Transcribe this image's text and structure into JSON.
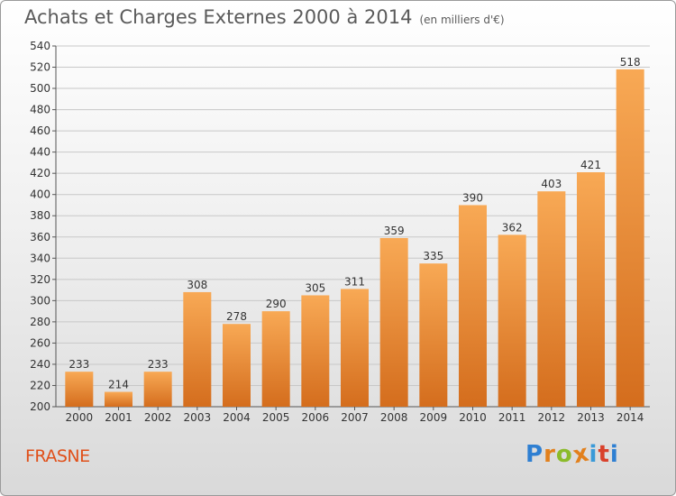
{
  "header": {
    "title": "Achats et Charges Externes 2000 à 2014",
    "unit": "(en milliers d'€)"
  },
  "footer": {
    "place": "FRASNE",
    "logo_text": "Proxiti",
    "logo_colors": [
      "#2e7fd2",
      "#e2801c",
      "#8bbb2a",
      "#e2801c",
      "#3a9ad8",
      "#d9412b",
      "#2e7fd2"
    ]
  },
  "colors": {
    "bar_light": "#f8a955",
    "bar_dark": "#d46d1d",
    "grid": "#c8c8c8",
    "axis_text": "#333333",
    "place": "#e0501a"
  },
  "chart_data": {
    "type": "bar",
    "title": "Achats et Charges Externes 2000 à 2014",
    "subtitle": "(en milliers d'€)",
    "categories": [
      "2000",
      "2001",
      "2002",
      "2003",
      "2004",
      "2005",
      "2006",
      "2007",
      "2008",
      "2009",
      "2010",
      "2011",
      "2012",
      "2013",
      "2014"
    ],
    "values": [
      233,
      214,
      233,
      308,
      278,
      290,
      305,
      311,
      359,
      335,
      390,
      362,
      403,
      421,
      518
    ],
    "ylim": [
      200,
      540
    ],
    "yticks": [
      200,
      220,
      240,
      260,
      280,
      300,
      320,
      340,
      360,
      380,
      400,
      420,
      440,
      460,
      480,
      500,
      520,
      540
    ],
    "grid": true,
    "xlabel": "",
    "ylabel": ""
  }
}
